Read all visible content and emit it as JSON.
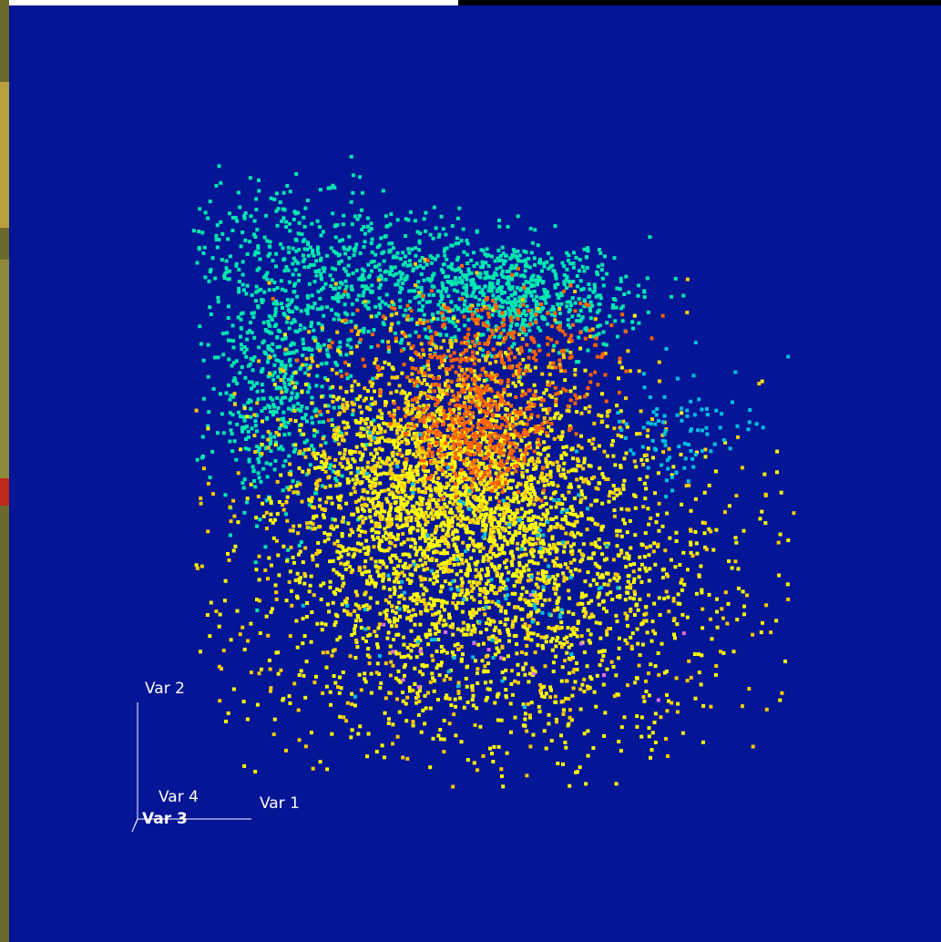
{
  "chart_data": {
    "type": "scatter",
    "title": "",
    "background": "#041596",
    "axes": [
      {
        "name": "Var 1"
      },
      {
        "name": "Var 2"
      },
      {
        "name": "Var 3"
      },
      {
        "name": "Var 4"
      }
    ],
    "series": [
      {
        "color": "#00e8b0",
        "approx_points": 3500
      },
      {
        "color": "#ffff00",
        "approx_points": 9000
      },
      {
        "color": "#ffcc00",
        "approx_points": 1200
      },
      {
        "color": "#ff6400",
        "approx_points": 700
      },
      {
        "color": "#00c0e0",
        "approx_points": 180
      },
      {
        "color": "#e070e0",
        "approx_points": 15
      }
    ]
  }
}
